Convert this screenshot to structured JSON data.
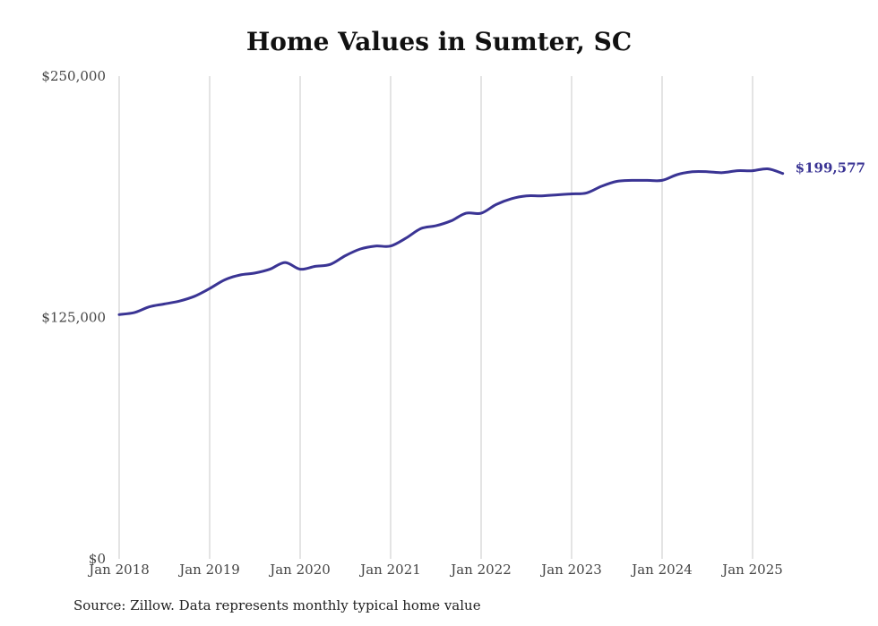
{
  "chart_data": {
    "type": "line",
    "title": "Home Values in Sumter, SC",
    "xlabel": "",
    "ylabel": "",
    "x_ticks": [
      "Jan 2018",
      "Jan 2019",
      "Jan 2020",
      "Jan 2021",
      "Jan 2022",
      "Jan 2023",
      "Jan 2024",
      "Jan 2025"
    ],
    "y_ticks": [
      "$0",
      "$125,000",
      "$250,000"
    ],
    "ylim": [
      0,
      250000
    ],
    "xlim": [
      "2018-01",
      "2025-05"
    ],
    "grid": "vertical",
    "line_color": "#3a3494",
    "end_label": "$199,577",
    "series": [
      {
        "x": [
          "2018-01",
          "2018-03",
          "2018-05",
          "2018-07",
          "2018-09",
          "2018-11",
          "2019-01",
          "2019-03",
          "2019-05",
          "2019-07",
          "2019-09",
          "2019-11",
          "2020-01",
          "2020-03",
          "2020-05",
          "2020-07",
          "2020-09",
          "2020-11",
          "2021-01",
          "2021-03",
          "2021-05",
          "2021-07",
          "2021-09",
          "2021-11",
          "2022-01",
          "2022-03",
          "2022-05",
          "2022-07",
          "2022-09",
          "2022-11",
          "2023-01",
          "2023-03",
          "2023-05",
          "2023-07",
          "2023-09",
          "2023-11",
          "2024-01",
          "2024-03",
          "2024-05",
          "2024-07",
          "2024-09",
          "2024-11",
          "2025-01",
          "2025-03",
          "2025-05"
        ],
        "values": [
          126500,
          127500,
          130500,
          132000,
          133500,
          136000,
          140000,
          144500,
          147000,
          148000,
          150000,
          153500,
          150000,
          151500,
          152500,
          157000,
          160500,
          162000,
          162000,
          166000,
          171000,
          172500,
          175000,
          179000,
          179000,
          183500,
          186500,
          188000,
          188000,
          188500,
          189000,
          189500,
          193000,
          195500,
          196000,
          196000,
          196000,
          199000,
          200500,
          200500,
          200000,
          201000,
          201000,
          202000,
          199577
        ]
      }
    ]
  },
  "source": "Source: Zillow. Data represents monthly typical home value"
}
